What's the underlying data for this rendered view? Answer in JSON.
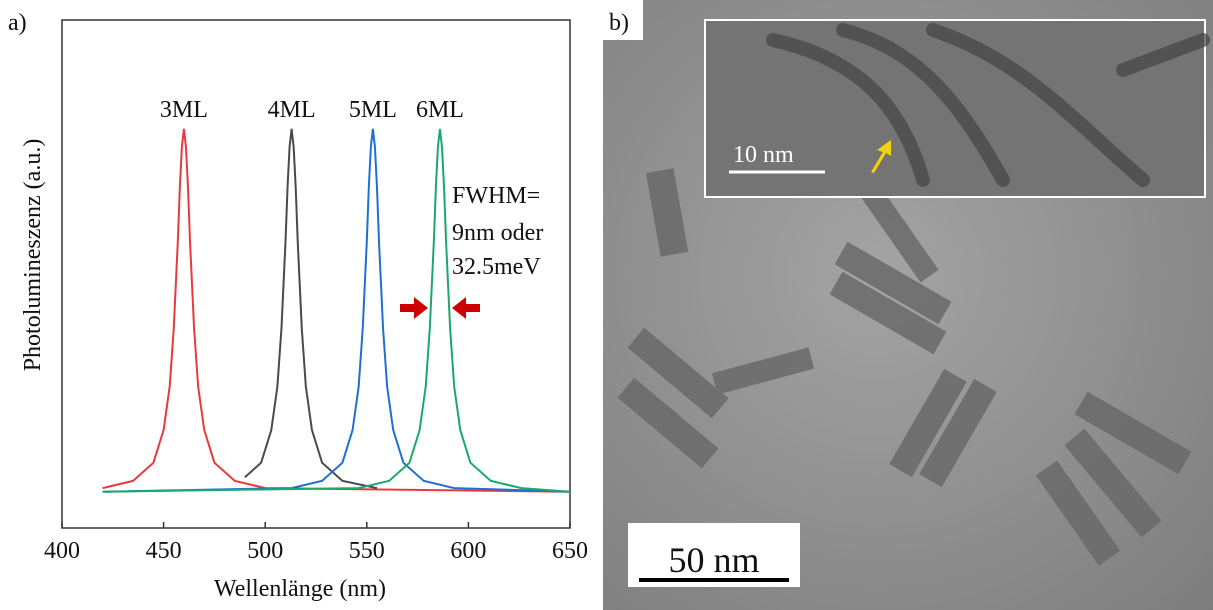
{
  "chart_data": {
    "type": "line",
    "panel_label": "a)",
    "x_label": "Wellenlänge (nm)",
    "y_label": "Photolumineszenz (a.u.)",
    "xlim": [
      400,
      650
    ],
    "xticks": [
      400,
      450,
      500,
      550,
      600,
      650
    ],
    "ylim": [
      -0.1,
      1.3
    ],
    "annotation": [
      "FWHM=",
      "9nm oder",
      "32.5meV"
    ],
    "series": [
      {
        "name": "3ML",
        "color": "#e8393f",
        "x": [
          420,
          435,
          445,
          450,
          453,
          455,
          457,
          458,
          459,
          460,
          461,
          462,
          463,
          465,
          467,
          470,
          475,
          485,
          500,
          650
        ],
        "values": [
          0.01,
          0.03,
          0.08,
          0.17,
          0.29,
          0.45,
          0.69,
          0.84,
          0.95,
          1,
          0.95,
          0.84,
          0.69,
          0.45,
          0.29,
          0.17,
          0.08,
          0.03,
          0.01,
          0
        ]
      },
      {
        "name": "4ML",
        "color": "#4a4a4a",
        "x": [
          490,
          498,
          503,
          506,
          508,
          510,
          511,
          512,
          513,
          514,
          515,
          516,
          518,
          520,
          523,
          528,
          538,
          555
        ],
        "values": [
          0.04,
          0.08,
          0.17,
          0.29,
          0.45,
          0.69,
          0.84,
          0.95,
          1,
          0.95,
          0.84,
          0.69,
          0.45,
          0.29,
          0.17,
          0.08,
          0.03,
          0.01
        ]
      },
      {
        "name": "5ML",
        "color": "#1f6fd6",
        "x": [
          420,
          513,
          528,
          538,
          543,
          546,
          548,
          550,
          551,
          552,
          553,
          554,
          555,
          556,
          558,
          560,
          563,
          568,
          578,
          593,
          650
        ],
        "values": [
          0,
          0.01,
          0.03,
          0.08,
          0.17,
          0.29,
          0.45,
          0.69,
          0.84,
          0.95,
          1,
          0.95,
          0.84,
          0.69,
          0.45,
          0.29,
          0.17,
          0.08,
          0.03,
          0.01,
          0
        ]
      },
      {
        "name": "6ML",
        "color": "#1aa86e",
        "x": [
          420,
          546,
          561,
          571,
          576,
          579,
          581,
          583,
          584,
          585,
          586,
          587,
          588,
          589,
          591,
          593,
          596,
          601,
          611,
          626,
          650
        ],
        "values": [
          0,
          0.01,
          0.03,
          0.08,
          0.17,
          0.29,
          0.45,
          0.69,
          0.84,
          0.95,
          1,
          0.95,
          0.84,
          0.69,
          0.45,
          0.29,
          0.17,
          0.08,
          0.03,
          0.01,
          0
        ]
      }
    ]
  },
  "image_panel": {
    "label": "b)",
    "scale_bar": "50 nm",
    "inset_scale_bar": "10 nm"
  }
}
